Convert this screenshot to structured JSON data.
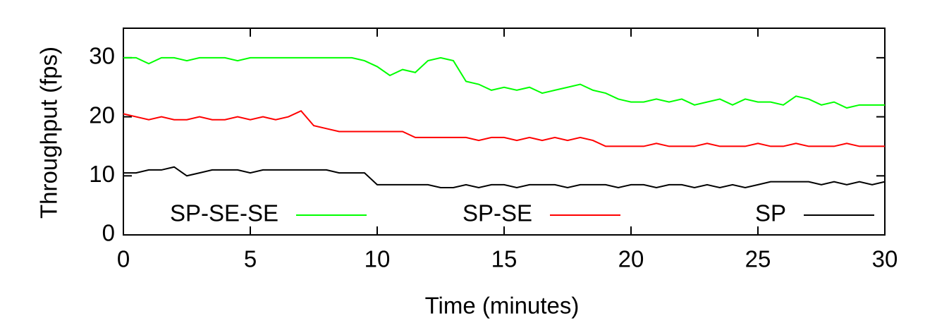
{
  "chart_data": {
    "type": "line",
    "x_label": "Time (minutes)",
    "y_label": "Throughput (fps)",
    "xlim": [
      0,
      30
    ],
    "xticks": [
      0,
      5,
      10,
      15,
      20,
      25,
      30
    ],
    "ylim": [
      0,
      35
    ],
    "yticks": [
      0,
      10,
      20,
      30
    ],
    "grid": false,
    "legend": "bottom",
    "x": [
      0,
      0.5,
      1,
      1.5,
      2,
      2.5,
      3,
      3.5,
      4,
      4.5,
      5,
      5.5,
      6,
      6.5,
      7,
      7.5,
      8,
      8.5,
      9,
      9.5,
      10,
      10.5,
      11,
      11.5,
      12,
      12.5,
      13,
      13.5,
      14,
      14.5,
      15,
      15.5,
      16,
      16.5,
      17,
      17.5,
      18,
      18.5,
      19,
      19.5,
      20,
      20.5,
      21,
      21.5,
      22,
      22.5,
      23,
      23.5,
      24,
      24.5,
      25,
      25.5,
      26,
      26.5,
      27,
      27.5,
      28,
      28.5,
      29,
      29.5,
      30
    ],
    "series": [
      {
        "name": "SP-SE-SE",
        "color": "#00ff00",
        "values": [
          30,
          30,
          29,
          30,
          30,
          29.5,
          30,
          30,
          30,
          29.5,
          30,
          30,
          30,
          30,
          30,
          30,
          30,
          30,
          30,
          29.5,
          28.5,
          27,
          28,
          27.5,
          29.5,
          30,
          29.5,
          26,
          25.5,
          24.5,
          25,
          24.5,
          25,
          24,
          24.5,
          25,
          25.5,
          24.5,
          24,
          23,
          22.5,
          22.5,
          23,
          22.5,
          23,
          22,
          22.5,
          23,
          22,
          23,
          22.5,
          22.5,
          22,
          23.5,
          23,
          22,
          22.5,
          21.5,
          22,
          22,
          22
        ]
      },
      {
        "name": "SP-SE",
        "color": "#ff0000",
        "values": [
          20.5,
          20,
          19.5,
          20,
          19.5,
          19.5,
          20,
          19.5,
          19.5,
          20,
          19.5,
          20,
          19.5,
          20,
          21,
          18.5,
          18,
          17.5,
          17.5,
          17.5,
          17.5,
          17.5,
          17.5,
          16.5,
          16.5,
          16.5,
          16.5,
          16.5,
          16,
          16.5,
          16.5,
          16,
          16.5,
          16,
          16.5,
          16,
          16.5,
          16,
          15,
          15,
          15,
          15,
          15.5,
          15,
          15,
          15,
          15.5,
          15,
          15,
          15,
          15.5,
          15,
          15,
          15.5,
          15,
          15,
          15,
          15.5,
          15,
          15,
          15
        ]
      },
      {
        "name": "SP",
        "color": "#000000",
        "values": [
          10.5,
          10.5,
          11,
          11,
          11.5,
          10,
          10.5,
          11,
          11,
          11,
          10.5,
          11,
          11,
          11,
          11,
          11,
          11,
          10.5,
          10.5,
          10.5,
          8.5,
          8.5,
          8.5,
          8.5,
          8.5,
          8,
          8,
          8.5,
          8,
          8.5,
          8.5,
          8,
          8.5,
          8.5,
          8.5,
          8,
          8.5,
          8.5,
          8.5,
          8,
          8.5,
          8.5,
          8,
          8.5,
          8.5,
          8,
          8.5,
          8,
          8.5,
          8,
          8.5,
          9,
          9,
          9,
          9,
          8.5,
          9,
          8.5,
          9,
          8.5,
          9
        ]
      }
    ]
  }
}
